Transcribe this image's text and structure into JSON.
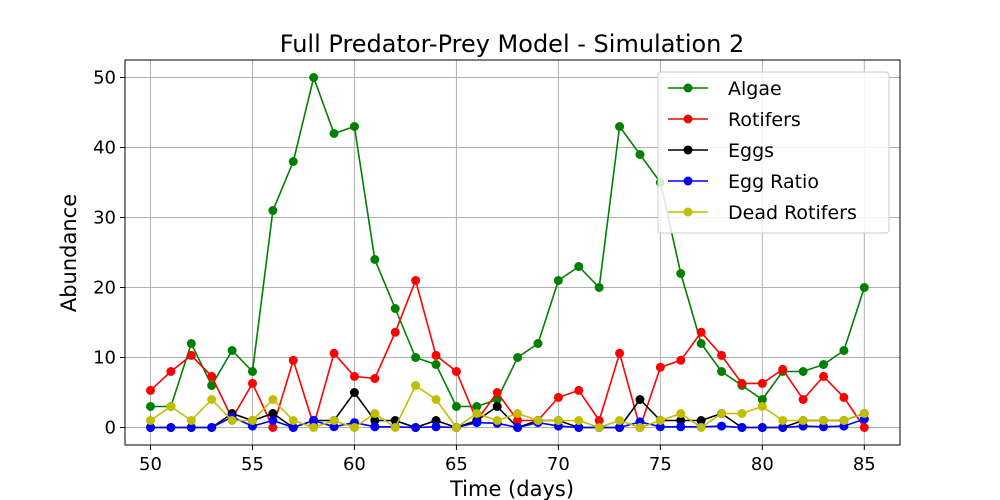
{
  "chart_data": {
    "type": "line",
    "title": "Full Predator-Prey Model - Simulation 2",
    "xlabel": "Time (days)",
    "ylabel": "Abundance",
    "xlim": [
      48.75,
      86.75
    ],
    "ylim": [
      -2.5,
      52.5
    ],
    "xticks": [
      50,
      55,
      60,
      65,
      70,
      75,
      80,
      85
    ],
    "yticks": [
      0,
      10,
      20,
      30,
      40,
      50
    ],
    "grid": true,
    "legend_position": "top-right",
    "x": [
      50,
      51,
      52,
      53,
      54,
      55,
      56,
      57,
      58,
      59,
      60,
      61,
      62,
      63,
      64,
      65,
      66,
      67,
      68,
      69,
      70,
      71,
      72,
      73,
      74,
      75,
      76,
      77,
      78,
      79,
      80,
      81,
      82,
      83,
      84,
      85
    ],
    "series": [
      {
        "name": "Algae",
        "color": "#008000",
        "values": [
          3,
          3,
          12,
          6,
          11,
          8,
          31,
          38,
          50,
          42,
          43,
          24,
          17,
          10,
          9,
          3,
          3,
          4,
          10,
          12,
          21,
          23,
          20,
          43,
          39,
          35,
          22,
          12,
          8,
          6,
          4,
          8,
          8,
          9,
          11,
          20
        ]
      },
      {
        "name": "Rotifers",
        "color": "#ff0000",
        "values": [
          5.3,
          8,
          10.3,
          7.3,
          1.3,
          6.3,
          0,
          9.6,
          0.3,
          10.6,
          7.3,
          7,
          13.6,
          21,
          10.3,
          8,
          1,
          5,
          1,
          1,
          4.3,
          5.3,
          1,
          10.6,
          0,
          8.6,
          9.6,
          13.6,
          10.3,
          6.3,
          6.3,
          8.3,
          4,
          7.3,
          4.3,
          0
        ]
      },
      {
        "name": "Eggs",
        "color": "#000000",
        "values": [
          0,
          0,
          0,
          0,
          2,
          1,
          2,
          0,
          1,
          1,
          5,
          1,
          1,
          0,
          1,
          0,
          1,
          3,
          0,
          1,
          1,
          0,
          0,
          0,
          4,
          1,
          1,
          1,
          2,
          0,
          0,
          0,
          1,
          1,
          1,
          2
        ]
      },
      {
        "name": "Egg Ratio",
        "color": "#0000ff",
        "values": [
          0,
          0,
          0,
          0,
          1.5,
          0.2,
          1,
          0,
          1,
          0.1,
          0.7,
          0.1,
          0.1,
          0,
          0.1,
          0,
          0.7,
          0.6,
          0,
          0.7,
          0.2,
          0,
          0,
          0,
          0.8,
          0.1,
          0.1,
          0.1,
          0.2,
          0,
          0,
          0,
          0.2,
          0.1,
          0.2,
          1.2
        ]
      },
      {
        "name": "Dead Rotifers",
        "color": "#bfbf00",
        "values": [
          1,
          3,
          1,
          4,
          1,
          1,
          4,
          1,
          0,
          1,
          0,
          2,
          0,
          6,
          4,
          0,
          2,
          1,
          2,
          1,
          1,
          1,
          0,
          1,
          0,
          1,
          2,
          0,
          2,
          2,
          3,
          1,
          1,
          1,
          1,
          2
        ]
      }
    ]
  }
}
